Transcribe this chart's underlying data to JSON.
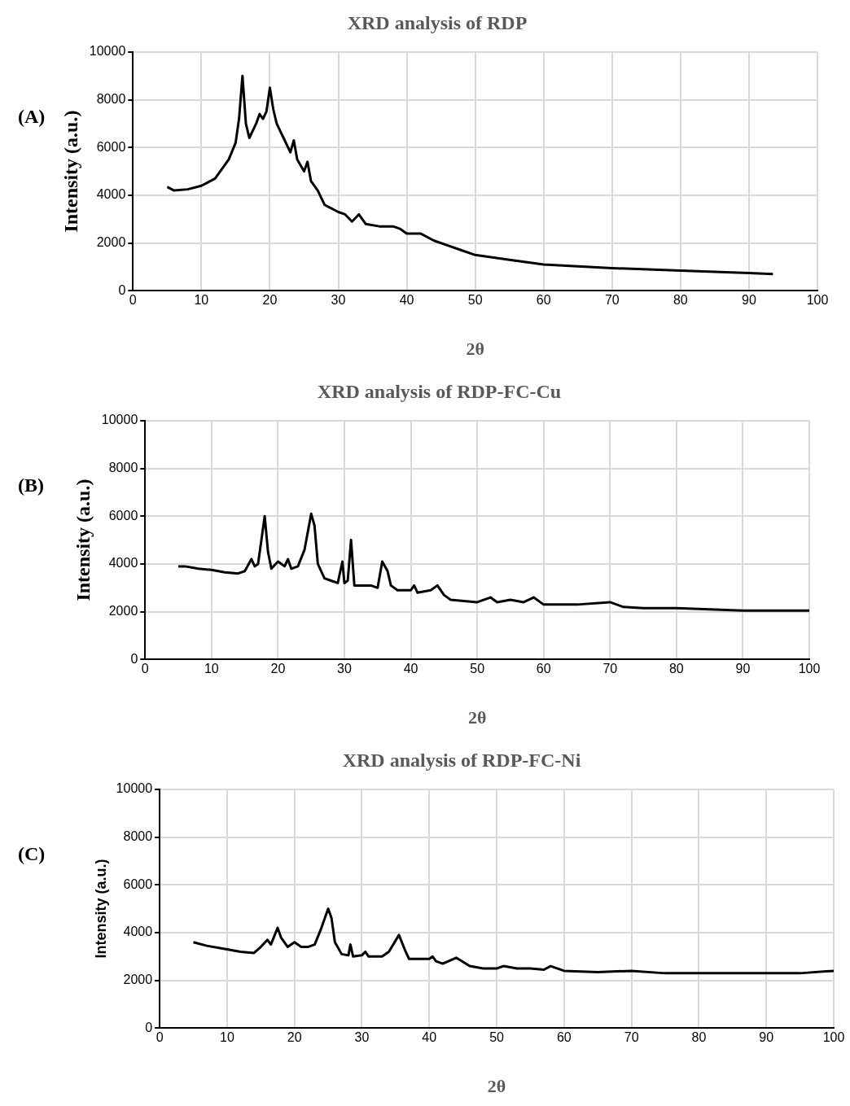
{
  "chart_data": [
    {
      "type": "line",
      "title": "XRD analysis of RDP",
      "xlabel": "2θ",
      "ylabel": "Intensity (a.u.)",
      "annotations": [
        "(A)"
      ],
      "xlim": [
        0,
        100
      ],
      "xticks": [
        0,
        10,
        20,
        30,
        40,
        50,
        60,
        70,
        80,
        90,
        100
      ],
      "ylim": [
        0,
        10000
      ],
      "yticks": [
        0,
        2000,
        4000,
        6000,
        8000,
        10000
      ],
      "grid": true,
      "legend": false,
      "marker": "none",
      "line_style": "solid",
      "series": [
        {
          "color": "#000000",
          "x": [
            5,
            6,
            8,
            10,
            12,
            14,
            15,
            15.5,
            16,
            16.5,
            17,
            18,
            18.5,
            19,
            19.5,
            20,
            20.5,
            21,
            22,
            23,
            23.5,
            24,
            25,
            25.5,
            26,
            27,
            28,
            30,
            31,
            32,
            33,
            34,
            36,
            38,
            39,
            40,
            42,
            44,
            46,
            48,
            50,
            55,
            60,
            70,
            80,
            90,
            93.5
          ],
          "values": [
            4350,
            4200,
            4250,
            4400,
            4700,
            5500,
            6200,
            7200,
            9000,
            7000,
            6400,
            7000,
            7400,
            7200,
            7500,
            8500,
            7600,
            7000,
            6400,
            5800,
            6300,
            5500,
            5000,
            5400,
            4600,
            4200,
            3600,
            3300,
            3200,
            2900,
            3200,
            2800,
            2700,
            2700,
            2600,
            2400,
            2400,
            2100,
            1900,
            1700,
            1500,
            1300,
            1100,
            950,
            850,
            750,
            700
          ]
        }
      ]
    },
    {
      "type": "line",
      "title": "XRD analysis of RDP-FC-Cu",
      "xlabel": "2θ",
      "ylabel": "Intensity (a.u.)",
      "annotations": [
        "(B)"
      ],
      "xlim": [
        0,
        100
      ],
      "xticks": [
        0,
        10,
        20,
        30,
        40,
        50,
        60,
        70,
        80,
        90,
        100
      ],
      "ylim": [
        0,
        10000
      ],
      "yticks": [
        0,
        2000,
        4000,
        6000,
        8000,
        10000
      ],
      "grid": true,
      "legend": false,
      "marker": "none",
      "line_style": "solid",
      "series": [
        {
          "color": "#000000",
          "x": [
            5,
            6,
            8,
            10,
            12,
            14,
            15,
            16,
            16.5,
            17,
            17.5,
            18,
            18.5,
            19,
            20,
            21,
            21.5,
            22,
            23,
            24,
            25,
            25.5,
            26,
            27,
            28,
            29,
            29.7,
            30,
            30.5,
            31,
            31.5,
            33,
            34,
            35,
            35.7,
            36.5,
            37,
            38,
            40,
            40.5,
            41,
            43,
            44,
            45,
            46,
            50,
            52,
            53,
            55,
            57,
            58.5,
            60,
            65,
            70,
            72,
            75,
            80,
            85,
            90,
            95,
            100
          ],
          "values": [
            3900,
            3900,
            3800,
            3750,
            3650,
            3600,
            3700,
            4200,
            3900,
            4000,
            5000,
            6000,
            4500,
            3800,
            4100,
            3900,
            4200,
            3800,
            3900,
            4600,
            6100,
            5600,
            4000,
            3400,
            3300,
            3200,
            4100,
            3200,
            3300,
            5000,
            3100,
            3100,
            3100,
            3000,
            4100,
            3700,
            3100,
            2900,
            2900,
            3100,
            2800,
            2900,
            3100,
            2700,
            2500,
            2400,
            2600,
            2400,
            2500,
            2400,
            2600,
            2300,
            2300,
            2400,
            2200,
            2150,
            2150,
            2100,
            2050,
            2050,
            2050
          ]
        }
      ]
    },
    {
      "type": "line",
      "title": "XRD analysis of RDP-FC-Ni",
      "xlabel": "2θ",
      "ylabel": "Intensity (a.u.)",
      "annotations": [
        "(C)"
      ],
      "xlim": [
        0,
        100
      ],
      "xticks": [
        0,
        10,
        20,
        30,
        40,
        50,
        60,
        70,
        80,
        90,
        100
      ],
      "ylim": [
        0,
        10000
      ],
      "yticks": [
        0,
        2000,
        4000,
        6000,
        8000,
        10000
      ],
      "grid": true,
      "legend": false,
      "marker": "none",
      "line_style": "solid",
      "series": [
        {
          "color": "#000000",
          "x": [
            5,
            7,
            10,
            12,
            14,
            15,
            16,
            16.5,
            17.5,
            18,
            19,
            20,
            21,
            22,
            23,
            24,
            25,
            25.5,
            26,
            27,
            28,
            28.3,
            28.7,
            30,
            30.5,
            31,
            33,
            34,
            35.5,
            36.5,
            37,
            40,
            40.5,
            41,
            42,
            44,
            46,
            48,
            50,
            51,
            53,
            55,
            57,
            58,
            60,
            65,
            70,
            75,
            80,
            85,
            90,
            95,
            100
          ],
          "values": [
            3600,
            3450,
            3300,
            3200,
            3150,
            3400,
            3700,
            3500,
            4200,
            3800,
            3400,
            3600,
            3400,
            3400,
            3500,
            4200,
            5000,
            4600,
            3600,
            3100,
            3050,
            3500,
            3000,
            3050,
            3200,
            3000,
            3000,
            3200,
            3900,
            3200,
            2900,
            2900,
            3000,
            2800,
            2700,
            2950,
            2600,
            2500,
            2500,
            2600,
            2500,
            2500,
            2450,
            2600,
            2400,
            2350,
            2400,
            2300,
            2300,
            2300,
            2300,
            2300,
            2400
          ]
        }
      ]
    }
  ]
}
